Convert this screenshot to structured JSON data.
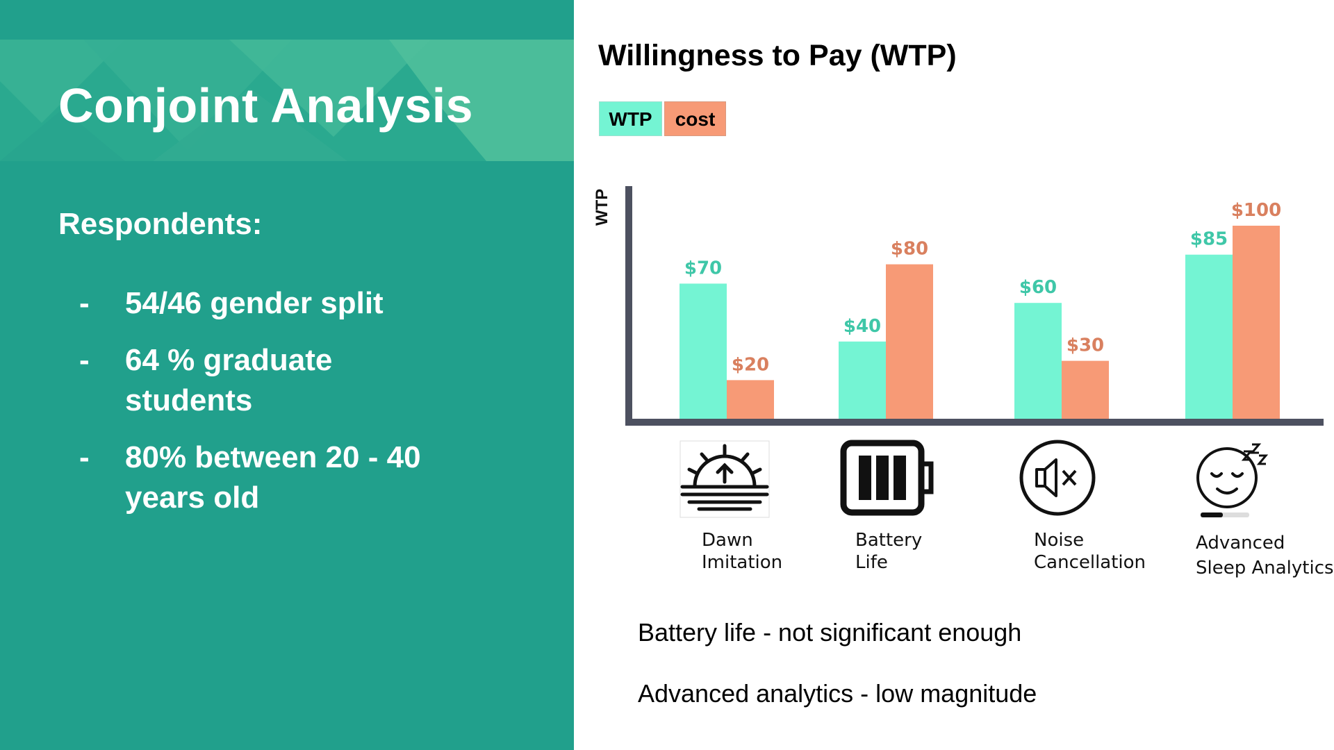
{
  "slide": {
    "title": "Conjoint Analysis",
    "respondents_heading": "Respondents:",
    "bullets": [
      {
        "dash": "-",
        "text": "54/46 gender split"
      },
      {
        "dash": "-",
        "text": "64 % graduate students"
      },
      {
        "dash": "-",
        "text": "80% between 20 - 40 years old"
      }
    ]
  },
  "colors": {
    "panel_bg": "#21a08c",
    "wtp": "#74f4d3",
    "cost": "#f79a76",
    "wtp_label": "#3fc7a8",
    "cost_label": "#d9805f",
    "axis": "#4d5160"
  },
  "chart_data": {
    "type": "bar",
    "title": "Willingness to Pay (WTP)",
    "ylabel": "WTP",
    "xlabel": "",
    "legend": [
      "WTP",
      "cost"
    ],
    "categories": [
      "Dawn\nImitation",
      "Battery\nLife",
      "Noise\nCancellation",
      "Advanced\nSleep  Analytics"
    ],
    "series": [
      {
        "name": "WTP",
        "values": [
          70,
          40,
          60,
          85
        ],
        "labels": [
          "$70",
          "$40",
          "$60",
          "$85"
        ]
      },
      {
        "name": "cost",
        "values": [
          20,
          80,
          30,
          100
        ],
        "labels": [
          "$20",
          "$80",
          "$30",
          "$100"
        ]
      }
    ],
    "ylim": [
      0,
      100
    ],
    "grid": false
  },
  "icons": [
    "sunrise-icon",
    "battery-icon",
    "mute-icon",
    "sleeping-face-icon"
  ],
  "notes": [
    "Battery life - not significant enough",
    "Advanced analytics - low magnitude"
  ]
}
